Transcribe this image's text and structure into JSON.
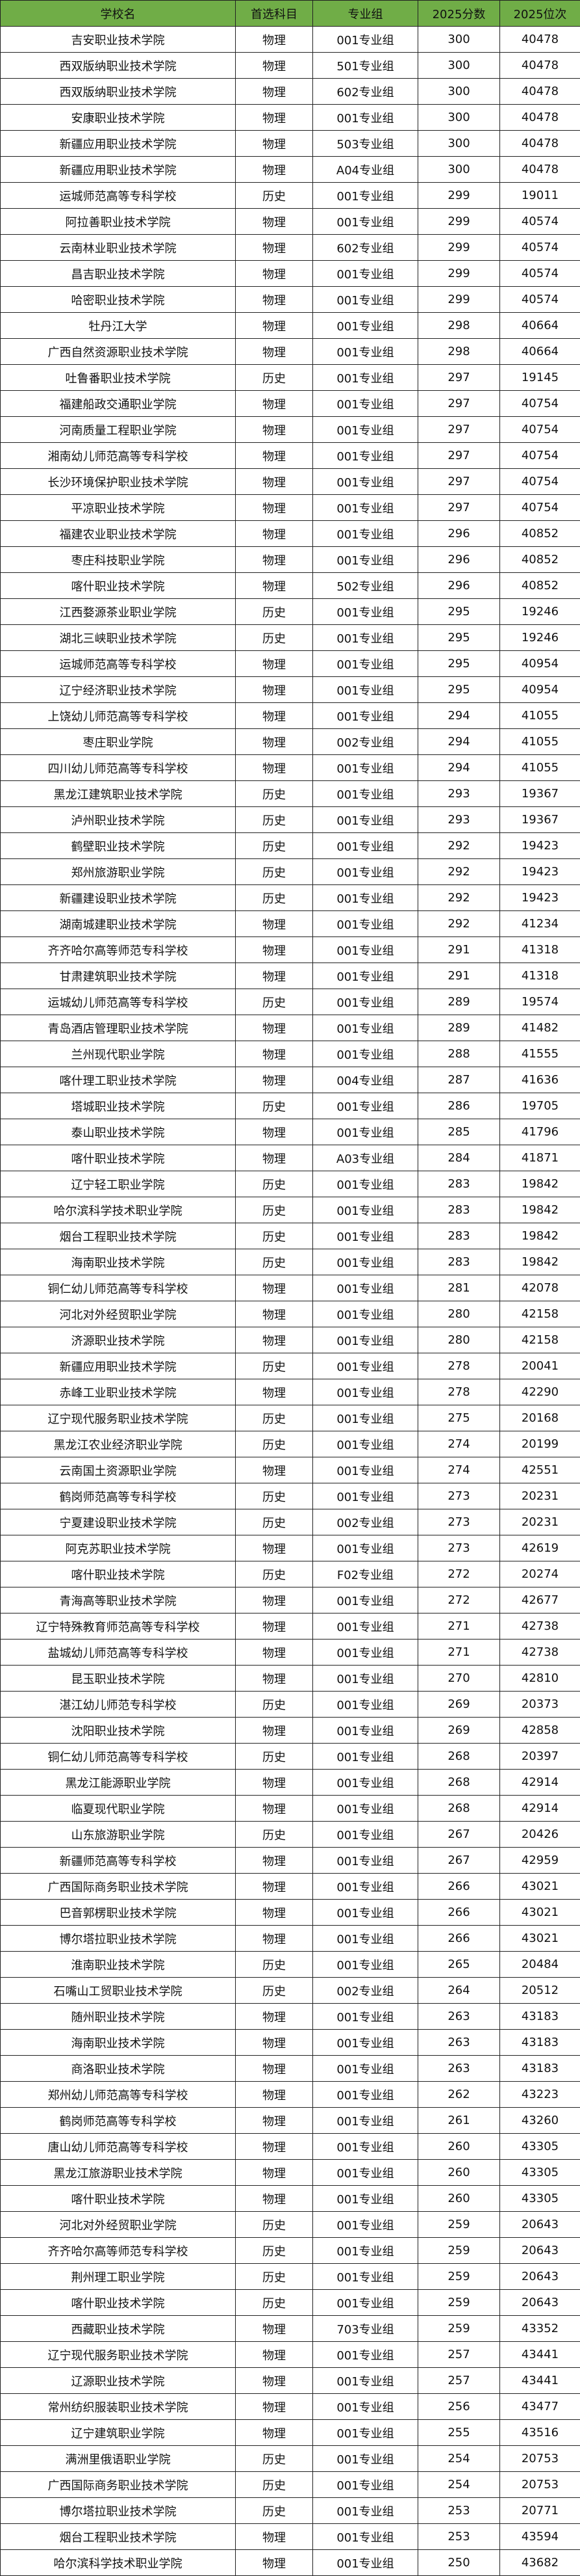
{
  "colors": {
    "header_bg": "#70ad47",
    "border": "#222222"
  },
  "table": {
    "headers": [
      "学校名",
      "首选科目",
      "专业组",
      "2025分数",
      "2025位次"
    ],
    "rows": [
      [
        "吉安职业技术学院",
        "物理",
        "001专业组",
        "300",
        "40478"
      ],
      [
        "西双版纳职业技术学院",
        "物理",
        "501专业组",
        "300",
        "40478"
      ],
      [
        "西双版纳职业技术学院",
        "物理",
        "602专业组",
        "300",
        "40478"
      ],
      [
        "安康职业技术学院",
        "物理",
        "001专业组",
        "300",
        "40478"
      ],
      [
        "新疆应用职业技术学院",
        "物理",
        "503专业组",
        "300",
        "40478"
      ],
      [
        "新疆应用职业技术学院",
        "物理",
        "A04专业组",
        "300",
        "40478"
      ],
      [
        "运城师范高等专科学校",
        "历史",
        "001专业组",
        "299",
        "19011"
      ],
      [
        "阿拉善职业技术学院",
        "物理",
        "001专业组",
        "299",
        "40574"
      ],
      [
        "云南林业职业技术学院",
        "物理",
        "602专业组",
        "299",
        "40574"
      ],
      [
        "昌吉职业技术学院",
        "物理",
        "001专业组",
        "299",
        "40574"
      ],
      [
        "哈密职业技术学院",
        "物理",
        "001专业组",
        "299",
        "40574"
      ],
      [
        "牡丹江大学",
        "物理",
        "001专业组",
        "298",
        "40664"
      ],
      [
        "广西自然资源职业技术学院",
        "物理",
        "001专业组",
        "298",
        "40664"
      ],
      [
        "吐鲁番职业技术学院",
        "历史",
        "001专业组",
        "297",
        "19145"
      ],
      [
        "福建船政交通职业学院",
        "物理",
        "001专业组",
        "297",
        "40754"
      ],
      [
        "河南质量工程职业学院",
        "物理",
        "001专业组",
        "297",
        "40754"
      ],
      [
        "湘南幼儿师范高等专科学校",
        "物理",
        "001专业组",
        "297",
        "40754"
      ],
      [
        "长沙环境保护职业技术学院",
        "物理",
        "001专业组",
        "297",
        "40754"
      ],
      [
        "平凉职业技术学院",
        "物理",
        "001专业组",
        "297",
        "40754"
      ],
      [
        "福建农业职业技术学院",
        "物理",
        "001专业组",
        "296",
        "40852"
      ],
      [
        "枣庄科技职业学院",
        "物理",
        "001专业组",
        "296",
        "40852"
      ],
      [
        "喀什职业技术学院",
        "物理",
        "502专业组",
        "296",
        "40852"
      ],
      [
        "江西婺源茶业职业学院",
        "历史",
        "001专业组",
        "295",
        "19246"
      ],
      [
        "湖北三峡职业技术学院",
        "历史",
        "001专业组",
        "295",
        "19246"
      ],
      [
        "运城师范高等专科学校",
        "物理",
        "001专业组",
        "295",
        "40954"
      ],
      [
        "辽宁经济职业技术学院",
        "物理",
        "001专业组",
        "295",
        "40954"
      ],
      [
        "上饶幼儿师范高等专科学校",
        "物理",
        "001专业组",
        "294",
        "41055"
      ],
      [
        "枣庄职业学院",
        "物理",
        "002专业组",
        "294",
        "41055"
      ],
      [
        "四川幼儿师范高等专科学校",
        "物理",
        "001专业组",
        "294",
        "41055"
      ],
      [
        "黑龙江建筑职业技术学院",
        "历史",
        "001专业组",
        "293",
        "19367"
      ],
      [
        "泸州职业技术学院",
        "历史",
        "001专业组",
        "293",
        "19367"
      ],
      [
        "鹤壁职业技术学院",
        "历史",
        "001专业组",
        "292",
        "19423"
      ],
      [
        "郑州旅游职业学院",
        "历史",
        "001专业组",
        "292",
        "19423"
      ],
      [
        "新疆建设职业技术学院",
        "历史",
        "001专业组",
        "292",
        "19423"
      ],
      [
        "湖南城建职业技术学院",
        "物理",
        "001专业组",
        "292",
        "41234"
      ],
      [
        "齐齐哈尔高等师范专科学校",
        "物理",
        "001专业组",
        "291",
        "41318"
      ],
      [
        "甘肃建筑职业技术学院",
        "物理",
        "001专业组",
        "291",
        "41318"
      ],
      [
        "运城幼儿师范高等专科学校",
        "历史",
        "001专业组",
        "289",
        "19574"
      ],
      [
        "青岛酒店管理职业技术学院",
        "物理",
        "001专业组",
        "289",
        "41482"
      ],
      [
        "兰州现代职业学院",
        "物理",
        "001专业组",
        "288",
        "41555"
      ],
      [
        "喀什理工职业技术学院",
        "物理",
        "004专业组",
        "287",
        "41636"
      ],
      [
        "塔城职业技术学院",
        "历史",
        "001专业组",
        "286",
        "19705"
      ],
      [
        "泰山职业技术学院",
        "物理",
        "001专业组",
        "285",
        "41796"
      ],
      [
        "喀什职业技术学院",
        "物理",
        "A03专业组",
        "284",
        "41871"
      ],
      [
        "辽宁轻工职业学院",
        "历史",
        "001专业组",
        "283",
        "19842"
      ],
      [
        "哈尔滨科学技术职业学院",
        "历史",
        "001专业组",
        "283",
        "19842"
      ],
      [
        "烟台工程职业技术学院",
        "历史",
        "001专业组",
        "283",
        "19842"
      ],
      [
        "海南职业技术学院",
        "历史",
        "001专业组",
        "283",
        "19842"
      ],
      [
        "铜仁幼儿师范高等专科学校",
        "物理",
        "001专业组",
        "281",
        "42078"
      ],
      [
        "河北对外经贸职业学院",
        "物理",
        "001专业组",
        "280",
        "42158"
      ],
      [
        "济源职业技术学院",
        "物理",
        "001专业组",
        "280",
        "42158"
      ],
      [
        "新疆应用职业技术学院",
        "历史",
        "001专业组",
        "278",
        "20041"
      ],
      [
        "赤峰工业职业技术学院",
        "物理",
        "001专业组",
        "278",
        "42290"
      ],
      [
        "辽宁现代服务职业技术学院",
        "历史",
        "001专业组",
        "275",
        "20168"
      ],
      [
        "黑龙江农业经济职业学院",
        "历史",
        "001专业组",
        "274",
        "20199"
      ],
      [
        "云南国土资源职业学院",
        "物理",
        "001专业组",
        "274",
        "42551"
      ],
      [
        "鹤岗师范高等专科学校",
        "历史",
        "001专业组",
        "273",
        "20231"
      ],
      [
        "宁夏建设职业技术学院",
        "历史",
        "002专业组",
        "273",
        "20231"
      ],
      [
        "阿克苏职业技术学院",
        "物理",
        "001专业组",
        "273",
        "42619"
      ],
      [
        "喀什职业技术学院",
        "历史",
        "F02专业组",
        "272",
        "20274"
      ],
      [
        "青海高等职业技术学院",
        "物理",
        "001专业组",
        "272",
        "42677"
      ],
      [
        "辽宁特殊教育师范高等专科学校",
        "物理",
        "001专业组",
        "271",
        "42738"
      ],
      [
        "盐城幼儿师范高等专科学校",
        "物理",
        "001专业组",
        "271",
        "42738"
      ],
      [
        "昆玉职业技术学院",
        "物理",
        "001专业组",
        "270",
        "42810"
      ],
      [
        "湛江幼儿师范专科学校",
        "历史",
        "001专业组",
        "269",
        "20373"
      ],
      [
        "沈阳职业技术学院",
        "物理",
        "001专业组",
        "269",
        "42858"
      ],
      [
        "铜仁幼儿师范高等专科学校",
        "历史",
        "001专业组",
        "268",
        "20397"
      ],
      [
        "黑龙江能源职业学院",
        "物理",
        "001专业组",
        "268",
        "42914"
      ],
      [
        "临夏现代职业学院",
        "物理",
        "001专业组",
        "268",
        "42914"
      ],
      [
        "山东旅游职业学院",
        "历史",
        "001专业组",
        "267",
        "20426"
      ],
      [
        "新疆师范高等专科学校",
        "物理",
        "001专业组",
        "267",
        "42959"
      ],
      [
        "广西国际商务职业技术学院",
        "物理",
        "001专业组",
        "266",
        "43021"
      ],
      [
        "巴音郭楞职业技术学院",
        "物理",
        "001专业组",
        "266",
        "43021"
      ],
      [
        "博尔塔拉职业技术学院",
        "物理",
        "001专业组",
        "266",
        "43021"
      ],
      [
        "淮南职业技术学院",
        "历史",
        "001专业组",
        "265",
        "20484"
      ],
      [
        "石嘴山工贸职业技术学院",
        "历史",
        "002专业组",
        "264",
        "20512"
      ],
      [
        "随州职业技术学院",
        "物理",
        "001专业组",
        "263",
        "43183"
      ],
      [
        "海南职业技术学院",
        "物理",
        "001专业组",
        "263",
        "43183"
      ],
      [
        "商洛职业技术学院",
        "物理",
        "001专业组",
        "263",
        "43183"
      ],
      [
        "郑州幼儿师范高等专科学校",
        "物理",
        "001专业组",
        "262",
        "43223"
      ],
      [
        "鹤岗师范高等专科学校",
        "物理",
        "001专业组",
        "261",
        "43260"
      ],
      [
        "唐山幼儿师范高等专科学校",
        "物理",
        "001专业组",
        "260",
        "43305"
      ],
      [
        "黑龙江旅游职业技术学院",
        "物理",
        "001专业组",
        "260",
        "43305"
      ],
      [
        "喀什职业技术学院",
        "物理",
        "001专业组",
        "260",
        "43305"
      ],
      [
        "河北对外经贸职业学院",
        "历史",
        "001专业组",
        "259",
        "20643"
      ],
      [
        "齐齐哈尔高等师范专科学校",
        "历史",
        "001专业组",
        "259",
        "20643"
      ],
      [
        "荆州理工职业学院",
        "历史",
        "001专业组",
        "259",
        "20643"
      ],
      [
        "喀什职业技术学院",
        "历史",
        "001专业组",
        "259",
        "20643"
      ],
      [
        "西藏职业技术学院",
        "物理",
        "703专业组",
        "259",
        "43352"
      ],
      [
        "辽宁现代服务职业技术学院",
        "物理",
        "001专业组",
        "257",
        "43441"
      ],
      [
        "辽源职业技术学院",
        "物理",
        "001专业组",
        "257",
        "43441"
      ],
      [
        "常州纺织服装职业技术学院",
        "物理",
        "001专业组",
        "256",
        "43477"
      ],
      [
        "辽宁建筑职业学院",
        "物理",
        "001专业组",
        "255",
        "43516"
      ],
      [
        "满洲里俄语职业学院",
        "历史",
        "001专业组",
        "254",
        "20753"
      ],
      [
        "广西国际商务职业技术学院",
        "历史",
        "001专业组",
        "254",
        "20753"
      ],
      [
        "博尔塔拉职业技术学院",
        "历史",
        "001专业组",
        "253",
        "20771"
      ],
      [
        "烟台工程职业技术学院",
        "物理",
        "001专业组",
        "253",
        "43594"
      ],
      [
        "哈尔滨科学技术职业学院",
        "物理",
        "001专业组",
        "250",
        "43682"
      ]
    ]
  }
}
